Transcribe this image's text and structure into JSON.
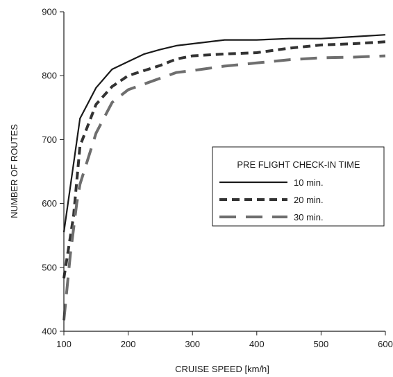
{
  "chart_data": {
    "type": "line",
    "title": "",
    "xlabel": "CRUISE SPEED [km/h]",
    "ylabel": "NUMBER OF ROUTES",
    "xlim": [
      100,
      600
    ],
    "ylim": [
      400,
      900
    ],
    "x_ticks": [
      "100",
      "200",
      "300",
      "400",
      "500",
      "600"
    ],
    "y_ticks": [
      "400",
      "500",
      "600",
      "700",
      "800",
      "900"
    ],
    "grid": false,
    "legend": {
      "title": "PRE FLIGHT CHECK-IN TIME",
      "placement": "right"
    },
    "series": [
      {
        "name": "10 min.",
        "color": "#1a1a1a",
        "style": "solid",
        "points": [
          [
            100,
            555
          ],
          [
            125,
            733
          ],
          [
            150,
            781
          ],
          [
            175,
            810
          ],
          [
            200,
            822
          ],
          [
            225,
            834
          ],
          [
            250,
            841
          ],
          [
            275,
            847
          ],
          [
            300,
            850
          ],
          [
            350,
            856
          ],
          [
            400,
            856
          ],
          [
            450,
            858
          ],
          [
            500,
            858
          ],
          [
            550,
            861
          ],
          [
            600,
            864
          ]
        ]
      },
      {
        "name": "20 min.",
        "color": "#333333",
        "style": "dashed",
        "points": [
          [
            100,
            483
          ],
          [
            115,
            580
          ],
          [
            125,
            690
          ],
          [
            150,
            755
          ],
          [
            175,
            783
          ],
          [
            200,
            800
          ],
          [
            250,
            816
          ],
          [
            275,
            826
          ],
          [
            300,
            831
          ],
          [
            350,
            834
          ],
          [
            400,
            836
          ],
          [
            450,
            843
          ],
          [
            500,
            848
          ],
          [
            550,
            850
          ],
          [
            600,
            853
          ]
        ]
      },
      {
        "name": "30 min.",
        "color": "#6e6e6e",
        "style": "longdash",
        "points": [
          [
            100,
            417
          ],
          [
            110,
            520
          ],
          [
            120,
            600
          ],
          [
            125,
            630
          ],
          [
            150,
            710
          ],
          [
            175,
            758
          ],
          [
            200,
            778
          ],
          [
            250,
            796
          ],
          [
            275,
            805
          ],
          [
            300,
            808
          ],
          [
            350,
            815
          ],
          [
            400,
            820
          ],
          [
            450,
            825
          ],
          [
            500,
            828
          ],
          [
            550,
            829
          ],
          [
            600,
            831
          ]
        ]
      }
    ]
  }
}
